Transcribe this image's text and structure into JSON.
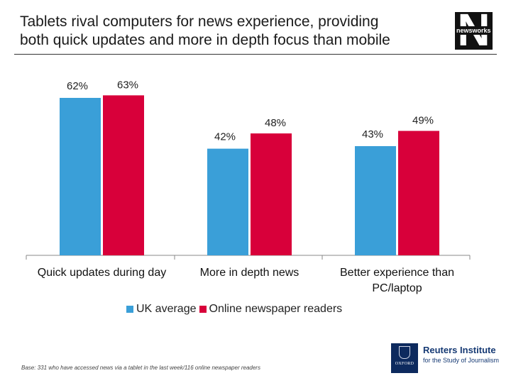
{
  "title": {
    "line1": "Tablets rival computers for news experience, providing",
    "line2": "both quick updates and more in depth focus than mobile"
  },
  "logo": {
    "letter": "N",
    "wordmark": "newsworks"
  },
  "colors": {
    "uk_average": "#3a9fd8",
    "online_readers": "#d8003a",
    "axis": "#888888"
  },
  "chart_data": {
    "type": "bar",
    "title": "Tablets rival computers for news experience, providing both quick updates and more in depth focus than mobile",
    "xlabel": "",
    "ylabel": "",
    "ylim": [
      0,
      70
    ],
    "grid": false,
    "categories": [
      [
        "Quick updates during day"
      ],
      [
        "More in depth news"
      ],
      [
        "Better experience than",
        "PC/laptop"
      ]
    ],
    "series": [
      {
        "name": "UK average",
        "values": [
          62,
          42,
          43
        ],
        "labels": [
          "62%",
          "42%",
          "43%"
        ]
      },
      {
        "name": "Online newspaper readers",
        "values": [
          63,
          48,
          49
        ],
        "labels": [
          "63%",
          "48%",
          "49%"
        ]
      }
    ],
    "legend_position": "bottom"
  },
  "legend": {
    "items": [
      "UK average",
      "Online newspaper readers"
    ]
  },
  "footnote": "Base: 331 who have accessed news via a tablet in the last week/116 online newspaper readers",
  "oxford": {
    "crest_word": "OXFORD"
  },
  "reuters": {
    "name": "Reuters Institute",
    "sub": "for the Study of Journalism"
  }
}
